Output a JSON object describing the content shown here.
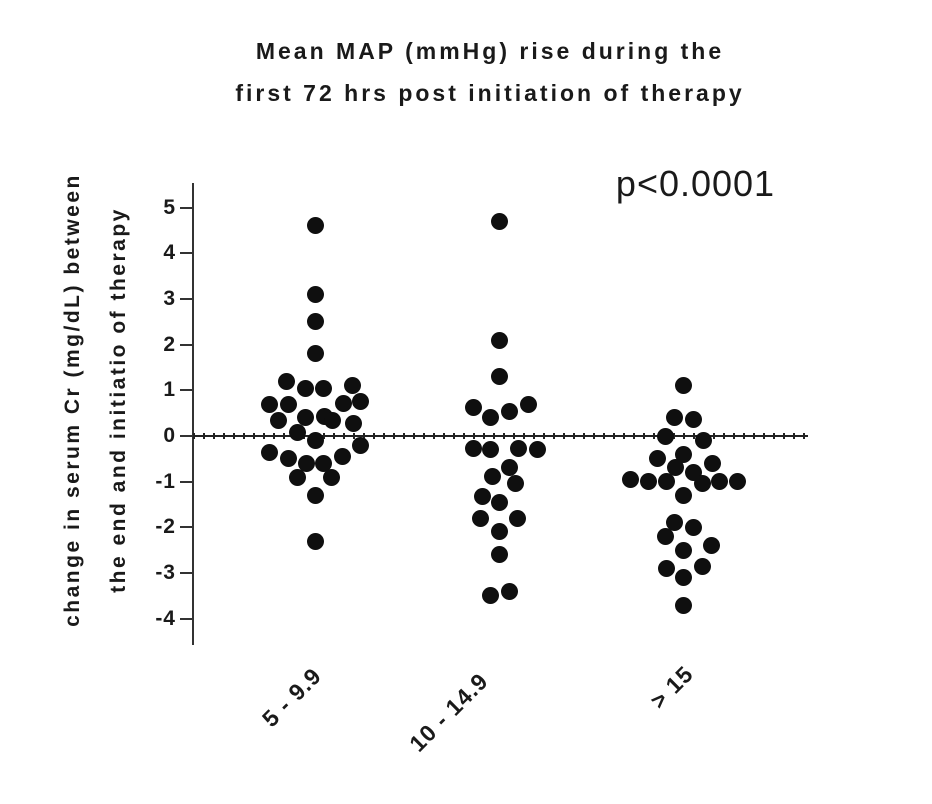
{
  "chart_data": {
    "type": "scatter",
    "title_lines": [
      "Mean MAP (mmHg) rise during the",
      "first 72 hrs post initiation of therapy"
    ],
    "ylabel_lines": [
      "change in serum Cr (mg/dL) between",
      "the end and initiatio of therapy"
    ],
    "annotation": "p<0.0001",
    "xlabel": "",
    "ylabel": "change in serum Cr (mg/dL) between the end and initiatio of therapy",
    "categories": [
      "5 - 9.9",
      "10 - 14.9",
      "> 15"
    ],
    "yticks": [
      5,
      4,
      3,
      2,
      1,
      0,
      -1,
      -2,
      -3,
      -4
    ],
    "ylim": [
      -4.6,
      5.6
    ],
    "grid": false,
    "legend_position": "none",
    "zero_line": true,
    "dot_color": "#0f0f0f",
    "point_format": "[jitter_px, value_mg_dL]",
    "series": [
      {
        "name": "5 - 9.9",
        "n": 29,
        "points": [
          [
            0,
            4.6
          ],
          [
            0,
            3.1
          ],
          [
            0,
            2.5
          ],
          [
            0,
            1.8
          ],
          [
            -29,
            1.2
          ],
          [
            -10,
            1.05
          ],
          [
            8,
            1.05
          ],
          [
            37,
            1.1
          ],
          [
            -46,
            0.7
          ],
          [
            -27,
            0.7
          ],
          [
            28,
            0.72
          ],
          [
            45,
            0.75
          ],
          [
            -37,
            0.33
          ],
          [
            -10,
            0.4
          ],
          [
            9,
            0.42
          ],
          [
            17,
            0.33
          ],
          [
            38,
            0.28
          ],
          [
            -18,
            0.07
          ],
          [
            0,
            -0.1
          ],
          [
            45,
            -0.2
          ],
          [
            -46,
            -0.37
          ],
          [
            -27,
            -0.5
          ],
          [
            -9,
            -0.6
          ],
          [
            8,
            -0.6
          ],
          [
            27,
            -0.45
          ],
          [
            -18,
            -0.9
          ],
          [
            16,
            -0.9
          ],
          [
            0,
            -1.3
          ],
          [
            0,
            -2.3
          ]
        ]
      },
      {
        "name": "10 - 14.9",
        "n": 22,
        "points": [
          [
            0,
            4.7
          ],
          [
            0,
            2.1
          ],
          [
            0,
            1.3
          ],
          [
            -26,
            0.62
          ],
          [
            -9,
            0.4
          ],
          [
            10,
            0.53
          ],
          [
            29,
            0.7
          ],
          [
            -26,
            -0.28
          ],
          [
            -9,
            -0.3
          ],
          [
            19,
            -0.27
          ],
          [
            38,
            -0.3
          ],
          [
            10,
            -0.7
          ],
          [
            -7,
            -0.88
          ],
          [
            16,
            -1.05
          ],
          [
            -17,
            -1.33
          ],
          [
            0,
            -1.45
          ],
          [
            -19,
            -1.8
          ],
          [
            18,
            -1.8
          ],
          [
            0,
            -2.1
          ],
          [
            0,
            -2.6
          ],
          [
            10,
            -3.4
          ],
          [
            -9,
            -3.5
          ]
        ]
      },
      {
        "name": "> 15",
        "n": 26,
        "points": [
          [
            0,
            1.1
          ],
          [
            -9,
            0.4
          ],
          [
            10,
            0.37
          ],
          [
            -18,
            0.0
          ],
          [
            20,
            -0.1
          ],
          [
            0,
            -0.4
          ],
          [
            -26,
            -0.5
          ],
          [
            29,
            -0.6
          ],
          [
            -8,
            -0.7
          ],
          [
            10,
            -0.8
          ],
          [
            -53,
            -0.95
          ],
          [
            -35,
            -1.0
          ],
          [
            -17,
            -1.0
          ],
          [
            19,
            -1.05
          ],
          [
            36,
            -1.0
          ],
          [
            54,
            -1.0
          ],
          [
            0,
            -1.3
          ],
          [
            -9,
            -1.9
          ],
          [
            10,
            -2.0
          ],
          [
            -18,
            -2.2
          ],
          [
            28,
            -2.4
          ],
          [
            0,
            -2.5
          ],
          [
            -17,
            -2.9
          ],
          [
            19,
            -2.85
          ],
          [
            0,
            -3.1
          ],
          [
            0,
            -3.7
          ]
        ]
      }
    ]
  }
}
